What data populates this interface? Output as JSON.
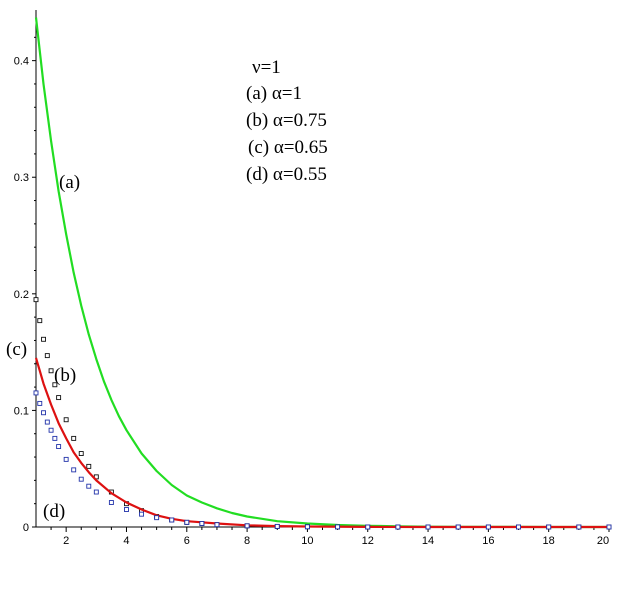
{
  "chart_data": {
    "type": "line",
    "title": "",
    "xlabel": "",
    "ylabel": "",
    "xlim": [
      1,
      20
    ],
    "ylim": [
      0,
      0.44
    ],
    "x_ticks": [
      2,
      4,
      6,
      8,
      10,
      12,
      14,
      16,
      18,
      20
    ],
    "y_ticks": [
      0,
      0.1,
      0.2,
      0.3,
      0.4
    ],
    "x_tick_labels": [
      "2",
      "4",
      "6",
      "8",
      "10",
      "12",
      "14",
      "16",
      "18",
      "20"
    ],
    "y_tick_labels": [
      "0",
      "0.1",
      "0.2",
      "0.3",
      "0.4"
    ],
    "grid": false,
    "legend_lines": [
      "ν=1",
      "(a) α=1",
      "(b) α=0.75",
      "(c) α=0.65",
      "(d) α=0.55"
    ],
    "curve_labels": [
      "(a)",
      "(b)",
      "(c)",
      "(d)"
    ],
    "series": [
      {
        "style": "line",
        "color": "#22dd22",
        "x": [
          1,
          1.25,
          1.5,
          1.75,
          2,
          2.25,
          2.5,
          2.75,
          3,
          3.25,
          3.5,
          3.75,
          4,
          4.5,
          5,
          5.5,
          6,
          6.5,
          7,
          7.5,
          8,
          9,
          10,
          11,
          12,
          13,
          14,
          15,
          16,
          17,
          18,
          19,
          20
        ],
        "y": [
          0.437,
          0.38,
          0.331,
          0.288,
          0.251,
          0.218,
          0.19,
          0.165,
          0.144,
          0.125,
          0.109,
          0.095,
          0.083,
          0.063,
          0.048,
          0.036,
          0.027,
          0.021,
          0.016,
          0.012,
          0.009,
          0.005,
          0.003,
          0.0017,
          0.001,
          0.0006,
          0.0003,
          0.0002,
          0.0001,
          0.0001,
          0.0,
          0.0,
          0.0
        ]
      },
      {
        "style": "squares",
        "color": "#111111",
        "x": [
          1,
          1.125,
          1.25,
          1.375,
          1.5,
          1.625,
          1.75,
          2,
          2.25,
          2.5,
          2.75,
          3,
          3.5,
          4,
          4.5,
          5,
          5.5,
          6,
          6.5,
          7,
          8,
          9,
          10,
          11,
          12,
          13,
          14,
          15,
          16,
          17,
          18,
          19,
          20
        ],
        "y": [
          0.195,
          0.177,
          0.161,
          0.147,
          0.134,
          0.122,
          0.111,
          0.092,
          0.076,
          0.063,
          0.052,
          0.043,
          0.03,
          0.02,
          0.014,
          0.009,
          0.006,
          0.004,
          0.003,
          0.002,
          0.001,
          0.0005,
          0.0002,
          0.0001,
          0.0,
          0.0,
          0.0,
          0.0,
          0.0,
          0.0,
          0.0,
          0.0,
          0.0
        ]
      },
      {
        "style": "line",
        "color": "#dd1111",
        "x": [
          1,
          1.125,
          1.25,
          1.5,
          1.75,
          2,
          2.25,
          2.5,
          2.75,
          3,
          3.5,
          4,
          4.5,
          5,
          5.5,
          6,
          6.5,
          7,
          8,
          9,
          10,
          12,
          14,
          16,
          18,
          20
        ],
        "y": [
          0.145,
          0.134,
          0.123,
          0.105,
          0.089,
          0.076,
          0.064,
          0.055,
          0.047,
          0.04,
          0.029,
          0.021,
          0.015,
          0.01,
          0.007,
          0.005,
          0.004,
          0.003,
          0.0015,
          0.0008,
          0.0004,
          0.0001,
          0.0,
          0.0,
          0.0,
          0.0
        ]
      },
      {
        "style": "squares",
        "color": "#2233aa",
        "x": [
          1,
          1.125,
          1.25,
          1.375,
          1.5,
          1.625,
          1.75,
          2,
          2.25,
          2.5,
          2.75,
          3,
          3.5,
          4,
          4.5,
          5,
          5.5,
          6,
          6.5,
          7,
          8,
          9,
          10,
          11,
          12,
          13,
          14,
          15,
          16,
          17,
          18,
          19,
          20
        ],
        "y": [
          0.115,
          0.106,
          0.098,
          0.09,
          0.083,
          0.076,
          0.069,
          0.058,
          0.049,
          0.041,
          0.035,
          0.03,
          0.021,
          0.015,
          0.011,
          0.008,
          0.006,
          0.004,
          0.003,
          0.002,
          0.001,
          0.0005,
          0.0002,
          0.0001,
          0.0,
          0.0,
          0.0,
          0.0,
          0.0,
          0.0,
          0.0,
          0.0,
          0.0
        ]
      }
    ]
  }
}
